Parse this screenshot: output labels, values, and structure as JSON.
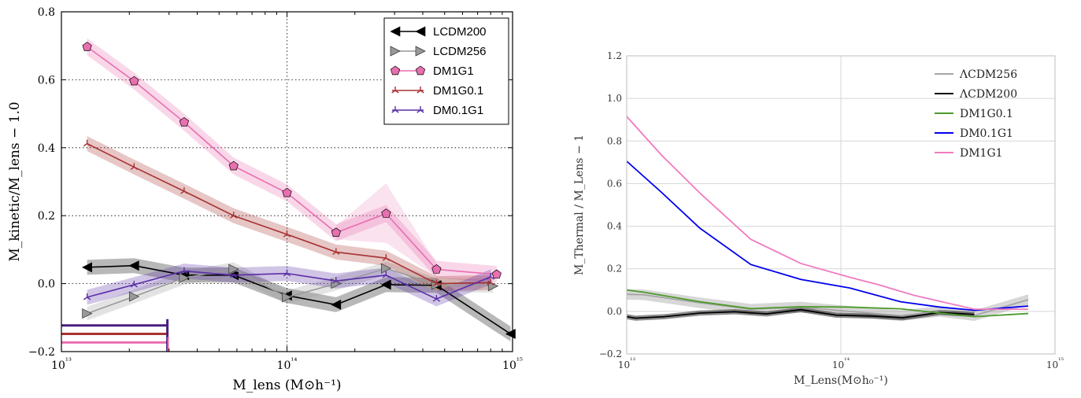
{
  "chart_data": [
    {
      "type": "line",
      "xscale": "log",
      "xlim": [
        10000000000000.0,
        1000000000000000.0
      ],
      "ylim": [
        -0.2,
        0.8
      ],
      "xlabel": "M_lens (M⊙h⁻¹)",
      "ylabel": "M_kinetic/M_lens − 1.0",
      "yticks": [
        "−0.2",
        "0.0",
        "0.2",
        "0.4",
        "0.6",
        "0.8"
      ],
      "xticks": [
        "10¹³",
        "10¹⁴",
        "10¹⁵"
      ],
      "grid": "dotted at x=1e14 and y=0,0.2,0.4,0.6",
      "legend_position": "top-right",
      "series": [
        {
          "name": "LCDM200",
          "color": "#000000",
          "marker": "triangle-left",
          "x": [
            13000000000000.0,
            21000000000000.0,
            35000000000000.0,
            58000000000000.0,
            100000000000000.0,
            165000000000000.0,
            275000000000000.0,
            460000000000000.0,
            980000000000000.0
          ],
          "y": [
            0.048,
            0.053,
            0.025,
            0.025,
            -0.035,
            -0.062,
            -0.003,
            -0.005,
            -0.148
          ],
          "band": 0.022
        },
        {
          "name": "LCDM256",
          "color": "#999999",
          "marker": "triangle-right",
          "x": [
            13000000000000.0,
            21000000000000.0,
            35000000000000.0,
            58000000000000.0,
            100000000000000.0,
            165000000000000.0,
            275000000000000.0,
            460000000000000.0,
            820000000000000.0
          ],
          "y": [
            -0.088,
            -0.038,
            0.017,
            0.043,
            -0.04,
            0.0,
            0.045,
            -0.003,
            -0.007
          ],
          "band": 0.02
        },
        {
          "name": "DM1G1",
          "color": "#e86fb0",
          "marker": "pentagon",
          "x": [
            13000000000000.0,
            21000000000000.0,
            35000000000000.0,
            58000000000000.0,
            100000000000000.0,
            165000000000000.0,
            275000000000000.0,
            460000000000000.0,
            850000000000000.0
          ],
          "y": [
            0.697,
            0.596,
            0.475,
            0.346,
            0.267,
            0.15,
            0.206,
            0.042,
            0.027
          ],
          "band": 0.025
        },
        {
          "name": "DM1G0.1",
          "color": "#a83232",
          "marker": "tri",
          "x": [
            13000000000000.0,
            21000000000000.0,
            35000000000000.0,
            58000000000000.0,
            100000000000000.0,
            165000000000000.0,
            275000000000000.0,
            460000000000000.0,
            800000000000000.0
          ],
          "y": [
            0.412,
            0.343,
            0.272,
            0.2,
            0.145,
            0.093,
            0.075,
            0.0,
            0.003
          ],
          "band": 0.022
        },
        {
          "name": "DM0.1G1",
          "color": "#5a2ea6",
          "marker": "tri",
          "x": [
            13000000000000.0,
            21000000000000.0,
            35000000000000.0,
            58000000000000.0,
            100000000000000.0,
            165000000000000.0,
            275000000000000.0,
            460000000000000.0,
            800000000000000.0
          ],
          "y": [
            -0.04,
            -0.003,
            0.037,
            0.025,
            0.03,
            0.008,
            0.025,
            -0.045,
            0.02
          ],
          "band": 0.022
        }
      ],
      "resolution_markers": {
        "x_end": 29500000000000.0,
        "lines": [
          {
            "color": "#4b1e7e",
            "y": -0.123
          },
          {
            "color": "#a83232",
            "y": -0.148
          },
          {
            "color": "#e86fb0",
            "y": -0.173
          }
        ]
      }
    },
    {
      "type": "line",
      "xscale": "log",
      "xlim": [
        10000000000000.0,
        1000000000000000.0
      ],
      "ylim": [
        -0.2,
        1.2
      ],
      "xlabel": "M_Lens(M⊙h₀⁻¹)",
      "ylabel": "M_Thermal / M_Lens − 1",
      "yticks": [
        "−0.2",
        "0.0",
        "0.2",
        "0.4",
        "0.6",
        "0.8",
        "1.0",
        "1.2"
      ],
      "xticks": [
        "10¹³",
        "10¹⁴",
        "10¹⁵"
      ],
      "grid": "solid light grey",
      "legend_position": "top-right",
      "series": [
        {
          "name": "ΛCDM256",
          "color": "#a6a6a6",
          "x": [
            10000000000000.0,
            12000000000000.0,
            22000000000000.0,
            38000000000000.0,
            65000000000000.0,
            110000000000000.0,
            190000000000000.0,
            290000000000000.0,
            420000000000000.0,
            750000000000000.0
          ],
          "y": [
            0.08,
            0.078,
            0.04,
            0.01,
            0.02,
            0.0,
            -0.02,
            0.0,
            -0.02,
            0.055
          ],
          "band": 0.025
        },
        {
          "name": "ΛCDM200",
          "color": "#000000",
          "x": [
            10000000000000.0,
            11000000000000.0,
            15000000000000.0,
            22000000000000.0,
            32000000000000.0,
            45000000000000.0,
            65000000000000.0,
            95000000000000.0,
            140000000000000.0,
            195000000000000.0,
            290000000000000.0,
            420000000000000.0
          ],
          "y": [
            -0.025,
            -0.032,
            -0.025,
            -0.008,
            -0.002,
            -0.012,
            0.008,
            -0.018,
            -0.022,
            -0.03,
            -0.005,
            -0.015
          ],
          "band": 0.012
        },
        {
          "name": "DM1G0.1",
          "color": "#4c9a2a",
          "x": [
            10000000000000.0,
            12000000000000.0,
            22000000000000.0,
            38000000000000.0,
            65000000000000.0,
            110000000000000.0,
            190000000000000.0,
            420000000000000.0,
            750000000000000.0
          ],
          "y": [
            0.1,
            0.09,
            0.045,
            0.013,
            0.022,
            0.02,
            0.012,
            -0.025,
            -0.01
          ],
          "band": 0.0
        },
        {
          "name": "DM0.1G1",
          "color": "#0000ee",
          "x": [
            10000000000000.0,
            14500000000000.0,
            22000000000000.0,
            38000000000000.0,
            65000000000000.0,
            110000000000000.0,
            190000000000000.0,
            290000000000000.0,
            420000000000000.0,
            750000000000000.0
          ],
          "y": [
            0.705,
            0.56,
            0.39,
            0.22,
            0.15,
            0.11,
            0.045,
            0.02,
            0.005,
            0.025
          ],
          "band": 0.0
        },
        {
          "name": "DM1G1",
          "color": "#f07abf",
          "x": [
            10000000000000.0,
            14500000000000.0,
            22000000000000.0,
            38000000000000.0,
            65000000000000.0,
            110000000000000.0,
            150000000000000.0,
            220000000000000.0,
            420000000000000.0,
            750000000000000.0
          ],
          "y": [
            0.915,
            0.735,
            0.555,
            0.338,
            0.225,
            0.16,
            0.125,
            0.075,
            0.01,
            0.01
          ],
          "band": 0.0
        }
      ]
    }
  ]
}
